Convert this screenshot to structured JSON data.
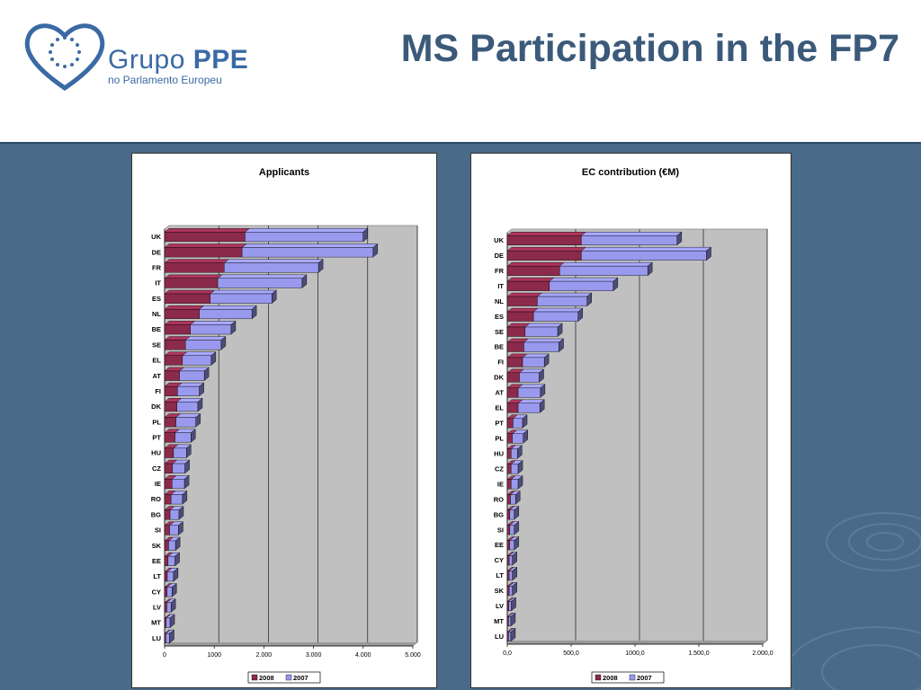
{
  "header": {
    "title": "MS Participation in the FP7",
    "logo_name_1": "Grupo ",
    "logo_name_2": "PPE",
    "logo_sub": "no Parlamento Europeu"
  },
  "colors": {
    "s2008": "#8b2a4a",
    "s2007": "#9999ee",
    "plot_bg": "#c0c0c0",
    "title": "#3b5a7a"
  },
  "chart_data": [
    {
      "type": "bar",
      "orientation": "horizontal",
      "stacked": true,
      "title": "Applicants",
      "categories": [
        "UK",
        "DE",
        "FR",
        "IT",
        "ES",
        "NL",
        "BE",
        "SE",
        "EL",
        "AT",
        "FI",
        "DK",
        "PL",
        "PT",
        "HU",
        "CZ",
        "IE",
        "RO",
        "BG",
        "SI",
        "SK",
        "EE",
        "LT",
        "CY",
        "LV",
        "MT",
        "LU"
      ],
      "series": [
        {
          "name": "2008",
          "values": [
            1620,
            1560,
            1200,
            1070,
            920,
            700,
            520,
            420,
            360,
            300,
            260,
            250,
            230,
            210,
            180,
            160,
            150,
            130,
            110,
            100,
            80,
            70,
            55,
            50,
            45,
            30,
            25
          ]
        },
        {
          "name": "2007",
          "values": [
            2380,
            2640,
            1900,
            1700,
            1240,
            1060,
            820,
            720,
            580,
            500,
            440,
            420,
            400,
            320,
            260,
            250,
            250,
            230,
            180,
            180,
            140,
            140,
            125,
            100,
            85,
            80,
            75
          ]
        }
      ],
      "xlim": [
        0,
        5000
      ],
      "ticks": [
        0,
        1000,
        2000,
        3000,
        4000,
        5000
      ],
      "tick_labels": [
        "0",
        "1000",
        "2.000",
        "3.000",
        "4.000",
        "5.000"
      ],
      "legend": "bottom",
      "grid": true
    },
    {
      "type": "bar",
      "orientation": "horizontal",
      "stacked": true,
      "title": "EC contribution (€M)",
      "categories": [
        "UK",
        "DE",
        "FR",
        "IT",
        "NL",
        "ES",
        "SE",
        "BE",
        "FI",
        "DK",
        "AT",
        "EL",
        "PT",
        "PL",
        "HU",
        "CZ",
        "IE",
        "RO",
        "BG",
        "SI",
        "EE",
        "CY",
        "LT",
        "SK",
        "LV",
        "MT",
        "LU"
      ],
      "series": [
        {
          "name": "2008",
          "values": [
            580,
            580,
            410,
            330,
            235,
            205,
            140,
            130,
            120,
            95,
            85,
            85,
            45,
            40,
            30,
            30,
            30,
            25,
            20,
            20,
            20,
            15,
            15,
            15,
            12,
            10,
            10
          ]
        },
        {
          "name": "2007",
          "values": [
            750,
            980,
            690,
            500,
            390,
            350,
            255,
            275,
            170,
            155,
            175,
            170,
            75,
            85,
            50,
            55,
            55,
            40,
            35,
            35,
            35,
            25,
            25,
            25,
            20,
            18,
            18
          ]
        }
      ],
      "xlim": [
        0,
        2000
      ],
      "ticks": [
        0,
        500,
        1000,
        1500,
        2000
      ],
      "tick_labels": [
        "0,0",
        "500,0",
        "1000,0",
        "1.500,0",
        "2.000,0"
      ],
      "legend": "bottom",
      "grid": true
    }
  ]
}
